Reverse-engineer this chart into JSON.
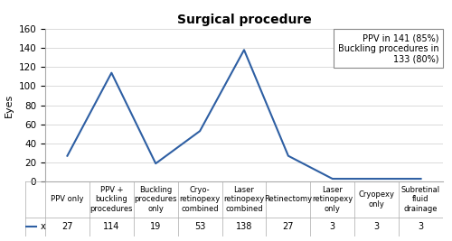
{
  "title": "Surgical procedure",
  "ylabel": "Eyes",
  "categories": [
    "PPV only",
    "PPV +\nbuckling\nprocedures",
    "Buckling\nprocedures\nonly",
    "Cryo-\nretinopexy\ncombined",
    "Laser\nretinopexy\ncombined",
    "Retinectomy",
    "Laser\nretinopexy\nonly",
    "Cryopexy\nonly",
    "Subretinal\nfluid\ndrainage"
  ],
  "values": [
    27,
    114,
    19,
    53,
    138,
    27,
    3,
    3,
    3
  ],
  "ylim": [
    0,
    160
  ],
  "yticks": [
    0,
    20,
    40,
    60,
    80,
    100,
    120,
    140,
    160
  ],
  "line_color": "#2E5FA3",
  "legend_text": "PPV in 141 (85%)\nBuckling procedures in\n133 (80%)",
  "row_label": "x",
  "background_color": "#ffffff",
  "table_row_values": [
    "27",
    "114",
    "19",
    "53",
    "138",
    "27",
    "3",
    "3",
    "3"
  ]
}
